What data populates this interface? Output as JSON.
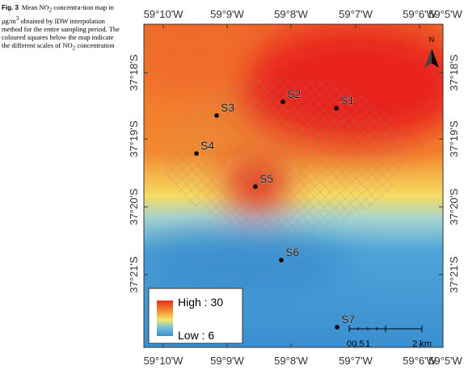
{
  "caption": {
    "label": "Fig. 3",
    "parts": [
      "Mean NO",
      "2",
      " concentra-tion map in μg/m",
      "3",
      " obtained by IDW interpolation method for the entire sampling period. The coloured squares below the map indicate the different scales of NO",
      "2",
      " concentration"
    ]
  },
  "longitudes": [
    "59°10'W",
    "59°9'W",
    "59°8'W",
    "59°7'W",
    "59°6'W",
    "59°5'W"
  ],
  "latitudes": [
    "37°18'S",
    "37°19'S",
    "37°20'S",
    "37°21'S"
  ],
  "stations": [
    "S1",
    "S2",
    "S3",
    "S4",
    "S5",
    "S6",
    "S7"
  ],
  "legend": {
    "high": "High : 30",
    "low": "Low : 6"
  },
  "scale_bar": [
    "0",
    "0.5",
    "1",
    "2 km"
  ],
  "north": "N"
}
